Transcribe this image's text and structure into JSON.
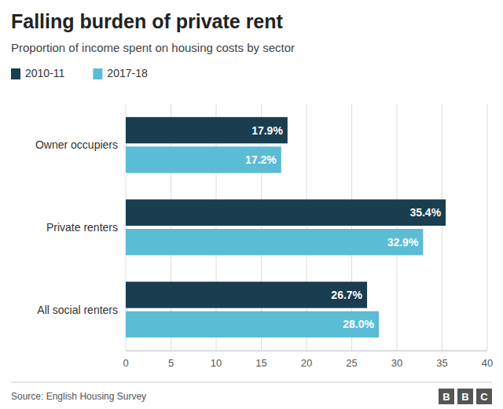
{
  "chart_data": {
    "type": "bar",
    "orientation": "horizontal",
    "title": "Falling burden of private rent",
    "subtitle": "Proportion of income spent on housing costs by sector",
    "categories": [
      "Owner occupiers",
      "Private renters",
      "All social renters"
    ],
    "series": [
      {
        "name": "2010-11",
        "color": "#1a3d4f",
        "values": [
          17.9,
          35.4,
          26.7
        ],
        "value_labels": [
          "17.9%",
          "35.4%",
          "26.7%"
        ]
      },
      {
        "name": "2017-18",
        "color": "#5bbcd6",
        "values": [
          17.2,
          32.9,
          28.0
        ],
        "value_labels": [
          "17.2%",
          "32.9%",
          "28.0%"
        ]
      }
    ],
    "xlim": [
      0,
      40
    ],
    "xticks": [
      0,
      5,
      10,
      15,
      20,
      25,
      30,
      35,
      40
    ],
    "grid": true,
    "legend": "top",
    "data_labels": true,
    "source": "Source: English Housing Survey",
    "logo_text": "BBC"
  }
}
